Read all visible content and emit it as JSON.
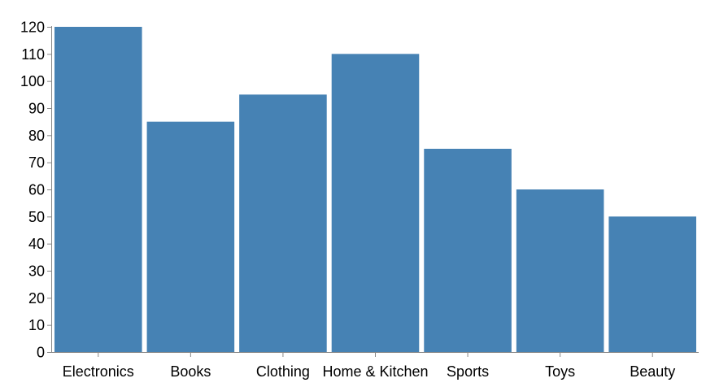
{
  "chart_data": {
    "type": "bar",
    "categories": [
      "Electronics",
      "Books",
      "Clothing",
      "Home & Kitchen",
      "Sports",
      "Toys",
      "Beauty"
    ],
    "values": [
      120,
      85,
      95,
      110,
      75,
      60,
      50
    ],
    "title": "",
    "xlabel": "",
    "ylabel": "",
    "ylim": [
      0,
      120
    ],
    "yticks": [
      0,
      10,
      20,
      30,
      40,
      50,
      60,
      70,
      80,
      90,
      100,
      110,
      120
    ],
    "grid": false,
    "legend": "none",
    "colors": {
      "bar": "#4682b4",
      "axis": "#888888"
    }
  }
}
